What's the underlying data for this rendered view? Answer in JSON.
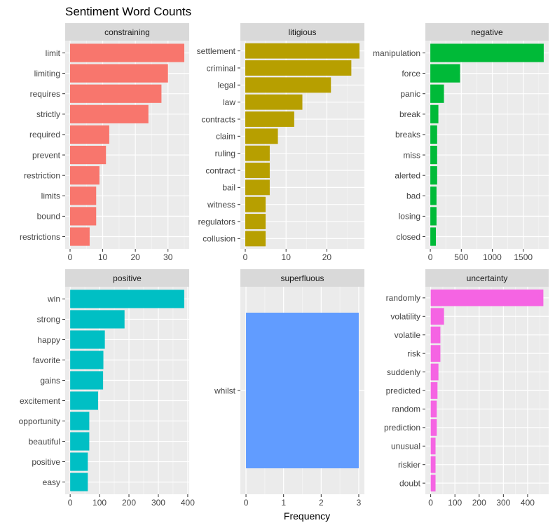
{
  "title": "Sentiment Word Counts",
  "xlabel": "Frequency",
  "colors": {
    "panel_bg": "#EBEBEB",
    "strip_bg": "#D9D9D9",
    "grid_major": "#FFFFFF",
    "grid_minor": "#F5F5F5",
    "text": "#333333",
    "tick": "#444444"
  },
  "chart_data": [
    {
      "type": "bar",
      "orientation": "horizontal",
      "facet": "constraining",
      "color": "#F8766D",
      "categories": [
        "limit",
        "limiting",
        "requires",
        "strictly",
        "required",
        "prevent",
        "restriction",
        "limits",
        "bound",
        "restrictions"
      ],
      "values": [
        35,
        30,
        28,
        24,
        12,
        11,
        9,
        8,
        8,
        6
      ],
      "xlim": [
        -1.5,
        36.5
      ],
      "xticks": [
        0,
        10,
        20,
        30
      ]
    },
    {
      "type": "bar",
      "orientation": "horizontal",
      "facet": "litigious",
      "color": "#B79F00",
      "categories": [
        "settlement",
        "criminal",
        "legal",
        "law",
        "contracts",
        "claim",
        "ruling",
        "contract",
        "bail",
        "witness",
        "regulators",
        "collusion"
      ],
      "values": [
        28,
        26,
        21,
        14,
        12,
        8,
        6,
        6,
        6,
        5,
        5,
        5
      ],
      "xlim": [
        -1.2,
        29.2
      ],
      "xticks": [
        0,
        10,
        20
      ]
    },
    {
      "type": "bar",
      "orientation": "horizontal",
      "facet": "negative",
      "color": "#00BA38",
      "categories": [
        "manipulation",
        "force",
        "panic",
        "break",
        "breaks",
        "miss",
        "alerted",
        "bad",
        "losing",
        "closed"
      ],
      "values": [
        1830,
        480,
        220,
        130,
        110,
        110,
        110,
        100,
        100,
        90
      ],
      "xlim": [
        -80,
        1910
      ],
      "xticks": [
        0,
        500,
        1000,
        1500
      ]
    },
    {
      "type": "bar",
      "orientation": "horizontal",
      "facet": "positive",
      "color": "#00BFC4",
      "categories": [
        "win",
        "strong",
        "happy",
        "favorite",
        "gains",
        "excitement",
        "opportunity",
        "beautiful",
        "positive",
        "easy"
      ],
      "values": [
        388,
        185,
        118,
        113,
        112,
        95,
        65,
        65,
        60,
        60
      ],
      "xlim": [
        -17,
        405
      ],
      "xticks": [
        0,
        100,
        200,
        300,
        400
      ]
    },
    {
      "type": "bar",
      "orientation": "horizontal",
      "facet": "superfluous",
      "color": "#619CFF",
      "categories": [
        "whilst"
      ],
      "values": [
        3
      ],
      "xlim": [
        -0.15,
        3.15
      ],
      "xticks": [
        0,
        1,
        2,
        3
      ]
    },
    {
      "type": "bar",
      "orientation": "horizontal",
      "facet": "uncertainty",
      "color": "#F564E3",
      "categories": [
        "randomly",
        "volatility",
        "volatile",
        "risk",
        "suddenly",
        "predicted",
        "random",
        "prediction",
        "unusual",
        "riskier",
        "doubt"
      ],
      "values": [
        465,
        55,
        40,
        40,
        32,
        28,
        25,
        25,
        20,
        20,
        20
      ],
      "xlim": [
        -22,
        487
      ],
      "xticks": [
        0,
        100,
        200,
        300,
        400
      ]
    }
  ]
}
